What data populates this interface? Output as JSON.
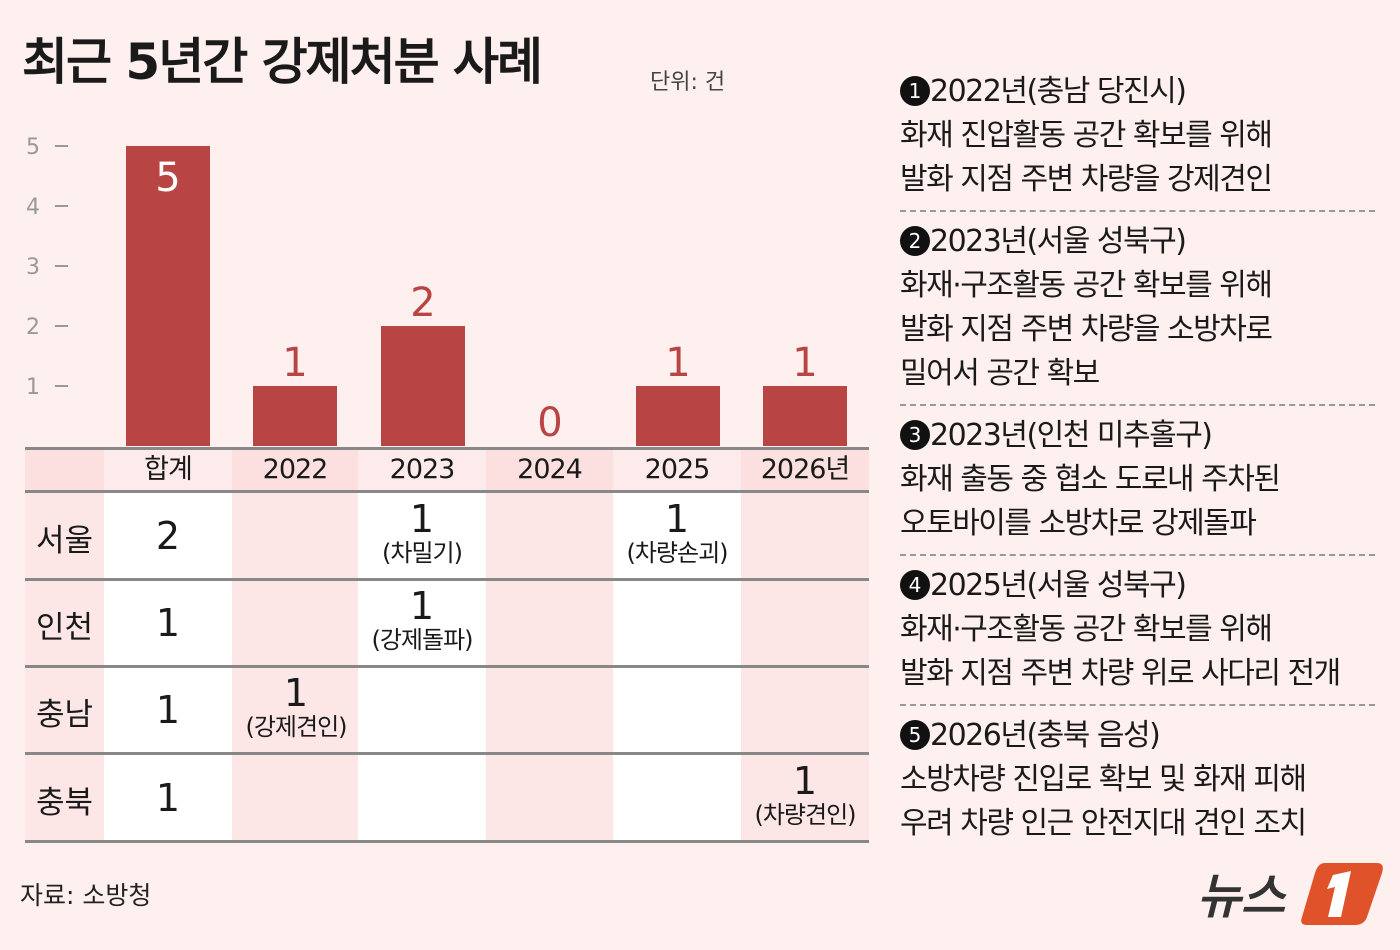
{
  "title": "최근 5년간 강제처분 사례",
  "unit": "단위: 건",
  "chart_data": {
    "type": "bar",
    "categories": [
      "합계",
      "2022",
      "2023",
      "2024",
      "2025",
      "2026년"
    ],
    "values": [
      5,
      1,
      2,
      0,
      1,
      1
    ],
    "ylim": [
      0,
      5
    ],
    "yticks": [
      1,
      2,
      3,
      4,
      5
    ],
    "bar_color": "#b94444",
    "grid": false
  },
  "table": {
    "rows": [
      {
        "region": "서울",
        "total": "2",
        "cells": [
          null,
          {
            "n": "1",
            "s": "(차밀기)"
          },
          null,
          {
            "n": "1",
            "s": "(차량손괴)"
          },
          null
        ]
      },
      {
        "region": "인천",
        "total": "1",
        "cells": [
          null,
          {
            "n": "1",
            "s": "(강제돌파)"
          },
          null,
          null,
          null
        ]
      },
      {
        "region": "충남",
        "total": "1",
        "cells": [
          {
            "n": "1",
            "s": "(강제견인)"
          },
          null,
          null,
          null,
          null
        ]
      },
      {
        "region": "충북",
        "total": "1",
        "cells": [
          null,
          null,
          null,
          null,
          {
            "n": "1",
            "s": "(차량견인)"
          }
        ]
      }
    ]
  },
  "notes": [
    {
      "num": "1",
      "head": "2022년(충남 당진시)",
      "lines": [
        "화재 진압활동 공간 확보를 위해",
        "발화 지점 주변 차량을 강제견인"
      ]
    },
    {
      "num": "2",
      "head": "2023년(서울 성북구)",
      "lines": [
        "화재·구조활동 공간 확보를 위해",
        "발화 지점 주변 차량을 소방차로",
        "밀어서 공간 확보"
      ]
    },
    {
      "num": "3",
      "head": "2023년(인천 미추홀구)",
      "lines": [
        "화재 출동 중 협소 도로내 주차된",
        "오토바이를 소방차로 강제돌파"
      ]
    },
    {
      "num": "4",
      "head": "2025년(서울 성북구)",
      "lines": [
        "화재·구조활동 공간 확보를 위해",
        "발화 지점 주변 차량 위로 사다리 전개"
      ]
    },
    {
      "num": "5",
      "head": "2026년(충북 음성)",
      "lines": [
        "소방차량 진입로 확보 및 화재 피해",
        "우려 차량 인근 안전지대 견인 조치"
      ]
    }
  ],
  "source": "자료: 소방청",
  "logo": {
    "text": "뉴스1",
    "color": "#e0522a"
  }
}
